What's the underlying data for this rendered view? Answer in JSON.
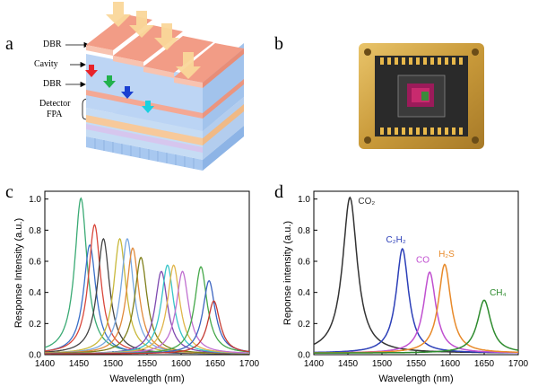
{
  "panels": {
    "a": "a",
    "b": "b",
    "c": "c",
    "d": "d"
  },
  "diagram_a": {
    "labels": [
      "DBR",
      "Cavity",
      "DBR",
      "Detector",
      "FPA"
    ],
    "arrow_colors": [
      "#e8232a",
      "#22b14c",
      "#1a3fd1",
      "#19d0e0"
    ],
    "light_color": "#fad79a",
    "top_color": "#f29c86",
    "cavity_color": "#b9d3f3",
    "detector_color": "#f7c99a",
    "fpa_color": "#a8c8f0"
  },
  "chart_data": [
    {
      "type": "line",
      "xlabel": "Wavelength (nm)",
      "ylabel": "Response Intensity (a.u.)",
      "xlim": [
        1400,
        1700
      ],
      "ylim": [
        0,
        1.05
      ],
      "xticks": [
        "1400",
        "1450",
        "1500",
        "1550",
        "1600",
        "1650",
        "1700"
      ],
      "yticks": [
        "0.0",
        "0.2",
        "0.4",
        "0.6",
        "0.8",
        "1.0"
      ],
      "width_nm": 11,
      "series": [
        {
          "center": 1453,
          "peak": 1.0,
          "color": "#3aaa74"
        },
        {
          "center": 1466,
          "peak": 0.7,
          "color": "#3a70c8"
        },
        {
          "center": 1473,
          "peak": 0.83,
          "color": "#d9473b"
        },
        {
          "center": 1486,
          "peak": 0.74,
          "color": "#444444"
        },
        {
          "center": 1510,
          "peak": 0.74,
          "color": "#c8b83a"
        },
        {
          "center": 1521,
          "peak": 0.74,
          "color": "#77a7e0"
        },
        {
          "center": 1529,
          "peak": 0.68,
          "color": "#e08a3b"
        },
        {
          "center": 1541,
          "peak": 0.62,
          "color": "#7f7f1a"
        },
        {
          "center": 1571,
          "peak": 0.53,
          "color": "#7f4ab0"
        },
        {
          "center": 1580,
          "peak": 0.57,
          "color": "#38c4c8"
        },
        {
          "center": 1589,
          "peak": 0.57,
          "color": "#e0b54a"
        },
        {
          "center": 1602,
          "peak": 0.53,
          "color": "#c070d0"
        },
        {
          "center": 1629,
          "peak": 0.56,
          "color": "#45a84a"
        },
        {
          "center": 1641,
          "peak": 0.47,
          "color": "#3c64c0"
        },
        {
          "center": 1648,
          "peak": 0.34,
          "color": "#c43a32"
        }
      ]
    },
    {
      "type": "line",
      "xlabel": "Wavelength (nm)",
      "ylabel": "Reponse intensity (a.u.)",
      "xlim": [
        1400,
        1700
      ],
      "ylim": [
        0,
        1.05
      ],
      "xticks": [
        "1400",
        "1450",
        "1500",
        "1550",
        "1600",
        "1650",
        "1700"
      ],
      "yticks": [
        "0.0",
        "0.2",
        "0.4",
        "0.6",
        "0.8",
        "1.0"
      ],
      "series": [
        {
          "name": "CO₂",
          "center": 1453,
          "peak": 1.0,
          "width": 13,
          "color": "#333333"
        },
        {
          "name": "C₂H₂",
          "center": 1530,
          "peak": 0.67,
          "width": 11,
          "color": "#2c3fb8"
        },
        {
          "name": "CO",
          "center": 1570,
          "peak": 0.52,
          "width": 11,
          "color": "#c050d0"
        },
        {
          "name": "H₂S",
          "center": 1592,
          "peak": 0.57,
          "width": 11,
          "color": "#e88a2a"
        },
        {
          "name": "CH₄",
          "center": 1650,
          "peak": 0.34,
          "width": 12,
          "color": "#2e8b2e"
        }
      ],
      "gas_labels": [
        {
          "text": "CO₂",
          "x": 1465,
          "y": 0.97,
          "color": "#333333"
        },
        {
          "text": "C₂H₂",
          "x": 1506,
          "y": 0.72,
          "color": "#2c3fb8"
        },
        {
          "text": "CO",
          "x": 1550,
          "y": 0.59,
          "color": "#c050d0"
        },
        {
          "text": "H₂S",
          "x": 1583,
          "y": 0.63,
          "color": "#e88a2a"
        },
        {
          "text": "CH₄",
          "x": 1658,
          "y": 0.38,
          "color": "#2e8b2e"
        }
      ]
    }
  ]
}
